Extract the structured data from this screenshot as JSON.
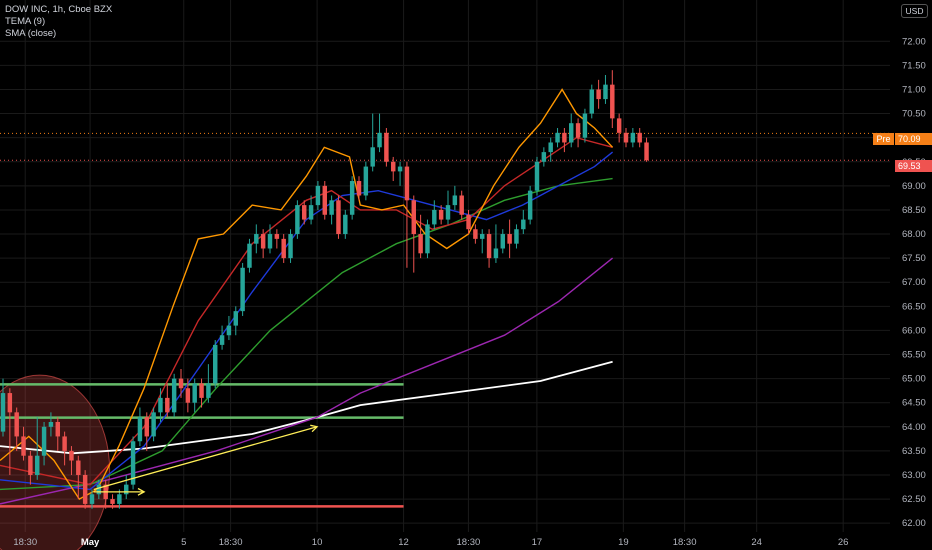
{
  "header": {
    "symbol_title": "DOW INC, 1h, Cboe BZX",
    "indicator_tema": "TEMA (9)",
    "indicator_sma": "SMA (close)",
    "currency": "USD"
  },
  "price_tags": {
    "pre_label": "Pre",
    "pre_value": "70.09",
    "last_value": "69.53"
  },
  "colors": {
    "up": "#26a69a",
    "down": "#ef5350",
    "tema": "#ff9800",
    "sma_red": "#c62828",
    "sma_blue": "#1e3adb",
    "sma_green": "#2e9d2e",
    "sma_purple": "#9c27b0",
    "sma_white": "#ffffff",
    "support_green": "#66bb6a",
    "support_red": "#ef5350",
    "arrow": "#ffee58"
  },
  "chart_data": {
    "type": "candlestick",
    "y_axis_ticks": [
      "62.00",
      "62.50",
      "63.00",
      "63.50",
      "64.00",
      "64.50",
      "65.00",
      "65.50",
      "66.00",
      "66.50",
      "67.00",
      "67.50",
      "68.00",
      "68.50",
      "69.00",
      "69.50",
      "70.00",
      "70.50",
      "71.00",
      "71.50",
      "72.00"
    ],
    "y_range": [
      61.9,
      72.4
    ],
    "x_axis_labels": [
      {
        "label": "18:30",
        "bold": false,
        "t": 7
      },
      {
        "label": "May",
        "bold": true,
        "t": 25
      },
      {
        "label": "5",
        "bold": false,
        "t": 51
      },
      {
        "label": "18:30",
        "bold": false,
        "t": 64
      },
      {
        "label": "10",
        "bold": false,
        "t": 88
      },
      {
        "label": "12",
        "bold": false,
        "t": 112
      },
      {
        "label": "18:30",
        "bold": false,
        "t": 130
      },
      {
        "label": "17",
        "bold": false,
        "t": 149
      },
      {
        "label": "19",
        "bold": false,
        "t": 173
      },
      {
        "label": "18:30",
        "bold": false,
        "t": 190
      },
      {
        "label": "24",
        "bold": false,
        "t": 210
      },
      {
        "label": "26",
        "bold": false,
        "t": 234
      }
    ],
    "t_range": [
      0,
      247
    ],
    "candles": [
      [
        63.9,
        64.7,
        65.0,
        63.8
      ],
      [
        64.7,
        64.3,
        64.8,
        63.0
      ],
      [
        64.3,
        63.8,
        64.4,
        63.5
      ],
      [
        63.8,
        63.4,
        64.0,
        63.3
      ],
      [
        63.4,
        63.0,
        63.5,
        62.8
      ],
      [
        63.0,
        63.4,
        64.2,
        62.9
      ],
      [
        63.4,
        64.0,
        64.1,
        63.2
      ],
      [
        64.0,
        64.1,
        64.3,
        63.8
      ],
      [
        64.1,
        63.8,
        64.2,
        63.5
      ],
      [
        63.8,
        63.5,
        63.9,
        63.2
      ],
      [
        63.5,
        63.3,
        63.6,
        63.0
      ],
      [
        63.3,
        63.0,
        63.4,
        62.5
      ],
      [
        63.0,
        62.4,
        63.1,
        62.3
      ],
      [
        62.4,
        62.6,
        62.7,
        62.3
      ],
      [
        62.6,
        62.8,
        62.9,
        62.5
      ],
      [
        62.8,
        62.5,
        62.9,
        62.3
      ],
      [
        62.5,
        62.4,
        62.6,
        62.3
      ],
      [
        62.4,
        62.6,
        62.7,
        62.3
      ],
      [
        62.6,
        62.8,
        63.0,
        62.5
      ],
      [
        62.8,
        63.7,
        63.8,
        62.7
      ],
      [
        63.7,
        64.2,
        64.4,
        63.6
      ],
      [
        64.2,
        63.8,
        64.3,
        63.5
      ],
      [
        63.8,
        64.3,
        64.4,
        63.7
      ],
      [
        64.3,
        64.6,
        64.8,
        64.1
      ],
      [
        64.6,
        64.3,
        64.9,
        64.2
      ],
      [
        64.3,
        65.0,
        65.1,
        64.2
      ],
      [
        65.0,
        64.8,
        65.2,
        64.6
      ],
      [
        64.8,
        64.5,
        65.0,
        64.3
      ],
      [
        64.5,
        64.9,
        65.0,
        64.3
      ],
      [
        64.9,
        64.6,
        65.0,
        64.4
      ],
      [
        64.6,
        64.9,
        65.3,
        64.5
      ],
      [
        64.9,
        65.7,
        65.8,
        64.8
      ],
      [
        65.7,
        65.9,
        66.1,
        65.6
      ],
      [
        65.9,
        66.1,
        66.3,
        65.8
      ],
      [
        66.1,
        66.4,
        66.5,
        65.9
      ],
      [
        66.4,
        67.3,
        67.4,
        66.3
      ],
      [
        67.3,
        67.8,
        67.9,
        67.2
      ],
      [
        67.8,
        68.0,
        68.2,
        67.6
      ],
      [
        68.0,
        67.7,
        68.1,
        67.5
      ],
      [
        67.7,
        68.0,
        68.2,
        67.6
      ],
      [
        68.0,
        67.9,
        68.1,
        67.7
      ],
      [
        67.9,
        67.5,
        68.0,
        67.4
      ],
      [
        67.5,
        68.0,
        68.1,
        67.4
      ],
      [
        68.0,
        68.6,
        68.7,
        67.9
      ],
      [
        68.6,
        68.3,
        68.7,
        68.2
      ],
      [
        68.3,
        68.6,
        68.8,
        68.2
      ],
      [
        68.6,
        69.0,
        69.1,
        68.5
      ],
      [
        69.0,
        68.4,
        69.1,
        68.3
      ],
      [
        68.4,
        68.7,
        68.8,
        68.2
      ],
      [
        68.7,
        68.0,
        68.8,
        67.9
      ],
      [
        68.0,
        68.4,
        68.5,
        67.9
      ],
      [
        68.4,
        69.1,
        69.2,
        68.3
      ],
      [
        69.1,
        68.8,
        69.2,
        68.7
      ],
      [
        68.8,
        69.4,
        69.5,
        68.7
      ],
      [
        69.4,
        69.8,
        70.5,
        69.3
      ],
      [
        69.8,
        70.1,
        70.5,
        69.7
      ],
      [
        70.1,
        69.5,
        70.2,
        69.4
      ],
      [
        69.5,
        69.3,
        69.6,
        69.1
      ],
      [
        69.3,
        69.4,
        69.5,
        69.0
      ],
      [
        69.4,
        68.7,
        69.5,
        67.3
      ],
      [
        68.7,
        68.0,
        68.8,
        67.2
      ],
      [
        68.0,
        67.6,
        68.4,
        67.5
      ],
      [
        67.6,
        68.2,
        68.3,
        67.5
      ],
      [
        68.2,
        68.5,
        68.7,
        68.1
      ],
      [
        68.5,
        68.3,
        68.6,
        68.2
      ],
      [
        68.3,
        68.6,
        68.9,
        68.2
      ],
      [
        68.6,
        68.8,
        69.0,
        68.5
      ],
      [
        68.8,
        68.4,
        68.9,
        68.3
      ],
      [
        68.4,
        68.1,
        68.5,
        68.0
      ],
      [
        68.1,
        67.9,
        68.2,
        67.8
      ],
      [
        67.9,
        68.0,
        68.1,
        67.6
      ],
      [
        68.0,
        67.5,
        68.1,
        67.3
      ],
      [
        67.5,
        67.7,
        68.2,
        67.4
      ],
      [
        67.7,
        68.0,
        68.1,
        67.6
      ],
      [
        68.0,
        67.8,
        68.3,
        67.5
      ],
      [
        67.8,
        68.1,
        68.2,
        67.7
      ],
      [
        68.1,
        68.3,
        68.5,
        68.0
      ],
      [
        68.3,
        68.9,
        69.0,
        68.2
      ],
      [
        68.9,
        69.5,
        69.6,
        68.8
      ],
      [
        69.5,
        69.7,
        69.8,
        69.4
      ],
      [
        69.7,
        69.9,
        70.0,
        69.5
      ],
      [
        69.9,
        70.1,
        70.2,
        69.8
      ],
      [
        70.1,
        69.9,
        70.2,
        69.7
      ],
      [
        69.9,
        70.3,
        70.5,
        69.8
      ],
      [
        70.3,
        70.0,
        70.4,
        69.8
      ],
      [
        70.0,
        70.5,
        70.6,
        69.9
      ],
      [
        70.5,
        71.0,
        71.1,
        70.4
      ],
      [
        71.0,
        70.8,
        71.2,
        70.6
      ],
      [
        70.8,
        71.1,
        71.3,
        70.7
      ],
      [
        71.1,
        70.4,
        71.4,
        70.2
      ],
      [
        70.4,
        70.1,
        70.5,
        69.9
      ],
      [
        70.1,
        69.9,
        70.2,
        69.8
      ],
      [
        69.9,
        70.1,
        70.2,
        69.8
      ],
      [
        70.1,
        69.9,
        70.2,
        69.8
      ],
      [
        69.9,
        69.53,
        70.0,
        69.5
      ]
    ],
    "candle_t_start": 0,
    "candle_t_step": 1.9,
    "moving_averages": [
      {
        "key": "sma_white",
        "points": [
          [
            0,
            63.6
          ],
          [
            20,
            63.45
          ],
          [
            40,
            63.55
          ],
          [
            70,
            63.85
          ],
          [
            88,
            64.2
          ],
          [
            100,
            64.45
          ],
          [
            125,
            64.7
          ],
          [
            150,
            64.95
          ],
          [
            170,
            65.35
          ]
        ]
      },
      {
        "key": "sma_purple",
        "points": [
          [
            0,
            62.4
          ],
          [
            30,
            62.9
          ],
          [
            60,
            63.5
          ],
          [
            88,
            64.2
          ],
          [
            100,
            64.7
          ],
          [
            120,
            65.3
          ],
          [
            140,
            65.9
          ],
          [
            155,
            66.6
          ],
          [
            170,
            67.5
          ]
        ]
      },
      {
        "key": "sma_green",
        "points": [
          [
            0,
            62.7
          ],
          [
            25,
            62.8
          ],
          [
            45,
            63.5
          ],
          [
            60,
            64.8
          ],
          [
            75,
            66.0
          ],
          [
            95,
            67.2
          ],
          [
            110,
            67.8
          ],
          [
            125,
            68.2
          ],
          [
            140,
            68.7
          ],
          [
            155,
            69.0
          ],
          [
            170,
            69.15
          ]
        ]
      },
      {
        "key": "sma_blue",
        "points": [
          [
            0,
            62.9
          ],
          [
            25,
            62.7
          ],
          [
            40,
            63.6
          ],
          [
            55,
            65.2
          ],
          [
            70,
            66.8
          ],
          [
            85,
            68.3
          ],
          [
            95,
            68.8
          ],
          [
            105,
            68.9
          ],
          [
            115,
            68.7
          ],
          [
            125,
            68.5
          ],
          [
            135,
            68.3
          ],
          [
            145,
            68.6
          ],
          [
            155,
            69.0
          ],
          [
            165,
            69.4
          ],
          [
            170,
            69.7
          ]
        ]
      },
      {
        "key": "sma_red",
        "points": [
          [
            0,
            63.2
          ],
          [
            25,
            62.8
          ],
          [
            40,
            64.0
          ],
          [
            55,
            66.2
          ],
          [
            70,
            67.8
          ],
          [
            85,
            68.7
          ],
          [
            92,
            68.9
          ],
          [
            100,
            68.5
          ],
          [
            110,
            68.5
          ],
          [
            120,
            68.1
          ],
          [
            130,
            68.3
          ],
          [
            140,
            69.0
          ],
          [
            150,
            69.5
          ],
          [
            160,
            70.0
          ],
          [
            170,
            69.8
          ]
        ]
      },
      {
        "key": "tema",
        "points": [
          [
            0,
            63.3
          ],
          [
            8,
            63.8
          ],
          [
            15,
            63.3
          ],
          [
            22,
            62.5
          ],
          [
            27,
            62.7
          ],
          [
            33,
            63.6
          ],
          [
            40,
            64.8
          ],
          [
            48,
            66.5
          ],
          [
            55,
            67.9
          ],
          [
            62,
            68.0
          ],
          [
            70,
            68.6
          ],
          [
            78,
            68.5
          ],
          [
            85,
            69.2
          ],
          [
            90,
            69.8
          ],
          [
            97,
            69.6
          ],
          [
            100,
            68.6
          ],
          [
            106,
            68.5
          ],
          [
            112,
            68.6
          ],
          [
            118,
            68.0
          ],
          [
            124,
            67.7
          ],
          [
            130,
            68.0
          ],
          [
            137,
            69.0
          ],
          [
            144,
            69.8
          ],
          [
            150,
            70.3
          ],
          [
            156,
            71.0
          ],
          [
            160,
            70.5
          ],
          [
            165,
            70.2
          ],
          [
            170,
            69.8
          ]
        ]
      }
    ],
    "support_lines": [
      {
        "key": "support_green",
        "value": 64.88,
        "t0": 0,
        "t1": 112
      },
      {
        "key": "support_green",
        "value": 64.19,
        "t0": 0,
        "t1": 112
      },
      {
        "key": "support_red",
        "value": 62.35,
        "t0": 0,
        "t1": 112
      }
    ],
    "arrows": [
      {
        "from": [
          26,
          62.65
        ],
        "to": [
          40,
          62.65
        ]
      },
      {
        "from": [
          26,
          62.7
        ],
        "to": [
          88,
          64.0
        ]
      }
    ],
    "reference_lines": [
      {
        "value": 70.09,
        "color": "#f57f17",
        "style": "dotted"
      },
      {
        "value": 69.53,
        "color": "#ef5350",
        "style": "dotted"
      }
    ]
  }
}
